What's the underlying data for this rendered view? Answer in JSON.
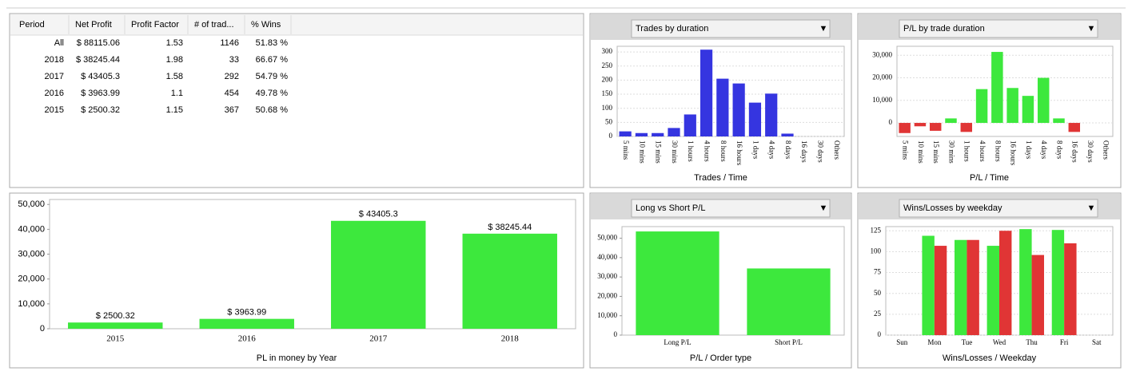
{
  "table": {
    "header": [
      "Period",
      "Net Profit",
      "Profit Factor",
      "# of trad...",
      "% Wins"
    ],
    "rows": [
      [
        "All",
        "$ 88115.06",
        "1.53",
        "1146",
        "51.83 %"
      ],
      [
        "2018",
        "$ 38245.44",
        "1.98",
        "33",
        "66.67 %"
      ],
      [
        "2017",
        "$ 43405.3",
        "1.58",
        "292",
        "54.79 %"
      ],
      [
        "2016",
        "$ 3963.99",
        "1.1",
        "454",
        "49.78 %"
      ],
      [
        "2015",
        "$ 2500.32",
        "1.15",
        "367",
        "50.68 %"
      ]
    ]
  },
  "chart_data": [
    {
      "type": "bar",
      "title": "Trades by duration",
      "xlabel": "Trades / Time",
      "categories": [
        "5 mins",
        "10 mins",
        "15 mins",
        "30 mins",
        "1 hours",
        "4 hours",
        "8 hours",
        "16 hours",
        "1 days",
        "4 days",
        "8 days",
        "16 days",
        "30 days",
        "Others"
      ],
      "values": [
        18,
        12,
        12,
        30,
        78,
        308,
        205,
        188,
        120,
        152,
        10,
        0,
        0,
        0
      ],
      "color": "#3535e0",
      "ylim": [
        0,
        320
      ],
      "yticks": [
        0,
        50,
        100,
        150,
        200,
        250,
        300
      ],
      "grid": true
    },
    {
      "type": "bar",
      "title": "P/L by trade duration",
      "xlabel": "P/L / Time",
      "categories": [
        "5 mins",
        "10 mins",
        "15 mins",
        "30 mins",
        "1 hours",
        "4 hours",
        "8 hours",
        "16 hours",
        "1 days",
        "4 days",
        "8 days",
        "16 days",
        "30 days",
        "Others"
      ],
      "values": [
        -4500,
        -1500,
        -3500,
        2000,
        -4000,
        15000,
        31500,
        15500,
        12000,
        20000,
        2000,
        -4000,
        0,
        0
      ],
      "color": "#3de83d",
      "negative_color": "#e03535",
      "ylim": [
        -6000,
        34000
      ],
      "yticks": [
        0,
        {
          "value": 10000,
          "label": "10,000"
        },
        {
          "value": 20000,
          "label": "20,000"
        },
        {
          "value": 30000,
          "label": "30,000"
        }
      ],
      "grid": true
    },
    {
      "type": "bar",
      "xlabel": "PL in money by Year",
      "categories": [
        "2015",
        "2016",
        "2017",
        "2018"
      ],
      "values": [
        2500.32,
        3963.99,
        43405.3,
        38245.44
      ],
      "value_labels": [
        "$ 2500.32",
        "$ 3963.99",
        "$ 43405.3",
        "$ 38245.44"
      ],
      "color": "#3de83d",
      "ylim": [
        0,
        52000
      ],
      "yticks": [
        0,
        {
          "value": 10000,
          "label": "10,000"
        },
        {
          "value": 20000,
          "label": "20,000"
        },
        {
          "value": 30000,
          "label": "30,000"
        },
        {
          "value": 40000,
          "label": "40,000"
        },
        {
          "value": 50000,
          "label": "50,000"
        }
      ],
      "grid": false
    },
    {
      "type": "bar",
      "title": "Long vs Short P/L",
      "xlabel": "P/L / Order type",
      "categories": [
        "Long P/L",
        "Short P/L"
      ],
      "values": [
        53500,
        34400
      ],
      "color": "#3de83d",
      "ylim": [
        0,
        56000
      ],
      "yticks": [
        0,
        {
          "value": 10000,
          "label": "10,000"
        },
        {
          "value": 20000,
          "label": "20,000"
        },
        {
          "value": 30000,
          "label": "30,000"
        },
        {
          "value": 40000,
          "label": "40,000"
        },
        {
          "value": 50000,
          "label": "50,000"
        }
      ],
      "grid": false
    },
    {
      "type": "grouped-bar",
      "title": "Wins/Losses by weekday",
      "xlabel": "Wins/Losses / Weekday",
      "categories": [
        "Sun",
        "Mon",
        "Tue",
        "Wed",
        "Thu",
        "Fri",
        "Sat"
      ],
      "series": [
        {
          "color": "#3de83d",
          "values": [
            0,
            119,
            114,
            107,
            127,
            126,
            0
          ]
        },
        {
          "color": "#e03535",
          "values": [
            0,
            107,
            114,
            125,
            96,
            110,
            0
          ]
        }
      ],
      "ylim": [
        0,
        130
      ],
      "yticks": [
        0,
        25,
        50,
        75,
        100,
        125
      ],
      "grid": true
    }
  ]
}
